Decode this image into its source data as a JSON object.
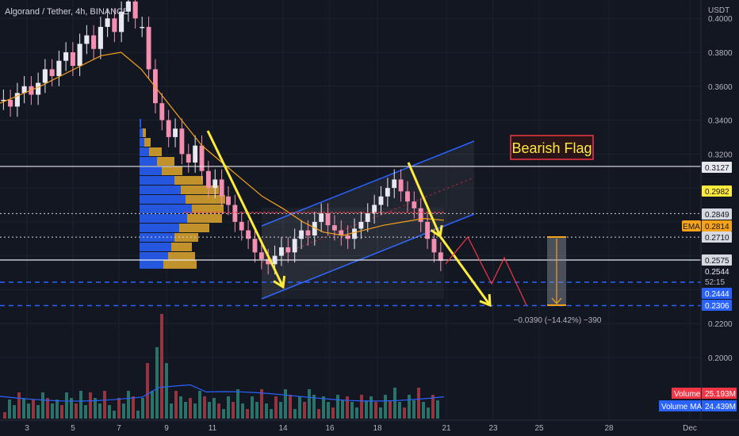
{
  "header": {
    "symbol_title": "Algorand / Tether, 4h, BINANCE",
    "currency": "USDT"
  },
  "annotation": {
    "pattern_label": "Bearish Flag",
    "measure_text": "−0.0390 (−14.42%) −390"
  },
  "legend": {
    "volume_label": "Volume",
    "volume_value": "25.193M",
    "volume_ma_label": "Volume MA",
    "volume_ma_value": "24.439M",
    "ema_label": "EMA"
  },
  "colors": {
    "background": "#131722",
    "up": "#e8e8f0",
    "down": "#f48fb1",
    "ema": "#f7a21b",
    "channel": "#2962ff",
    "arrow": "#ffeb3b",
    "profile_blue": "#2962ff",
    "profile_gold": "#e0a82e",
    "label_red": "#f23645",
    "volume_ma": "#2962ff"
  },
  "chart_data": {
    "type": "candlestick",
    "title": "Algorand / Tether, 4h, BINANCE",
    "ylabel": "USDT",
    "ylim": [
      0.18,
      0.41
    ],
    "y_scale": "linear",
    "x_ticks": [
      "3",
      "5",
      "7",
      "9",
      "11",
      "14",
      "16",
      "18",
      "21",
      "23",
      "25",
      "28",
      "Dec"
    ],
    "y_ticks": [
      "0.4000",
      "0.3800",
      "0.3600",
      "0.3400",
      "0.3200",
      "0.2200",
      "0.2000"
    ],
    "price_badges": [
      {
        "value": "0.3127",
        "style": "white"
      },
      {
        "value": "0.2982",
        "style": "yellow"
      },
      {
        "value": "0.2849",
        "style": "light"
      },
      {
        "value": "0.2814",
        "style": "orange",
        "label": "EMA"
      },
      {
        "value": "0.2710",
        "style": "light"
      },
      {
        "value": "0.2575",
        "style": "light"
      },
      {
        "value": "0.2544",
        "style": "dark"
      },
      {
        "value": "52:15",
        "style": "dark_small"
      },
      {
        "value": "0.2444",
        "style": "blue"
      },
      {
        "value": "0.2306",
        "style": "blue"
      }
    ],
    "horizontal_levels": [
      {
        "price": 0.3127,
        "style": "solid"
      },
      {
        "price": 0.2849,
        "style": "dotted"
      },
      {
        "price": 0.271,
        "style": "dotted"
      },
      {
        "price": 0.2575,
        "style": "solid"
      },
      {
        "price": 0.2444,
        "style": "dashed_blue"
      },
      {
        "price": 0.2306,
        "style": "dashed_blue"
      }
    ],
    "series": [
      {
        "name": "ALGO/USDT",
        "close_approx": [
          0.352,
          0.356,
          0.361,
          0.366,
          0.372,
          0.378,
          0.384,
          0.39,
          0.396,
          0.4,
          0.395,
          0.408,
          0.38,
          0.345,
          0.33,
          0.322,
          0.318,
          0.31,
          0.305,
          0.313,
          0.3,
          0.29,
          0.284,
          0.27,
          0.262,
          0.255,
          0.26,
          0.262,
          0.27,
          0.276,
          0.281,
          0.287,
          0.279,
          0.274,
          0.27,
          0.272,
          0.277,
          0.283,
          0.29,
          0.296,
          0.304,
          0.299,
          0.288,
          0.282,
          0.27,
          0.257
        ]
      }
    ],
    "ema": [
      0.35,
      0.355,
      0.36,
      0.366,
      0.372,
      0.378,
      0.38,
      0.37,
      0.355,
      0.34,
      0.325,
      0.315,
      0.305,
      0.295,
      0.288,
      0.28,
      0.274,
      0.272,
      0.275,
      0.278,
      0.28,
      0.282,
      0.281
    ],
    "volume_ma_value": "24.439M"
  }
}
